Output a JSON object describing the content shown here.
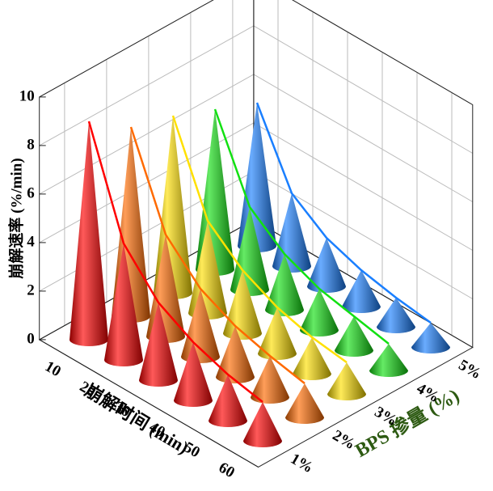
{
  "chart_data": {
    "type": "cone3d",
    "z_label": "崩解速率 (%/min)",
    "x_label": "崩解时间 (min)",
    "y_label": "BPS 掺量 (%)",
    "y_label_color": "#2d5a12",
    "x": [
      10,
      20,
      30,
      40,
      50,
      60
    ],
    "categories": [
      "1%",
      "2%",
      "3%",
      "4%",
      "5%"
    ],
    "series": [
      {
        "color": "#ff0000",
        "values": [
          9.0,
          4.8,
          3.2,
          2.4,
          1.9,
          1.6
        ]
      },
      {
        "color": "#ff6a00",
        "values": [
          7.8,
          4.2,
          2.8,
          2.1,
          1.7,
          1.4
        ]
      },
      {
        "color": "#ffe000",
        "values": [
          7.3,
          3.8,
          2.6,
          1.9,
          1.5,
          1.3
        ]
      },
      {
        "color": "#12e012",
        "values": [
          6.6,
          3.4,
          2.3,
          1.7,
          1.4,
          1.1
        ]
      },
      {
        "color": "#1a7fff",
        "values": [
          5.9,
          3.0,
          2.0,
          1.5,
          1.2,
          1.0
        ]
      }
    ],
    "zlim": [
      0,
      10
    ],
    "zticks": [
      0,
      2,
      4,
      6,
      8,
      10
    ],
    "grid": true
  }
}
